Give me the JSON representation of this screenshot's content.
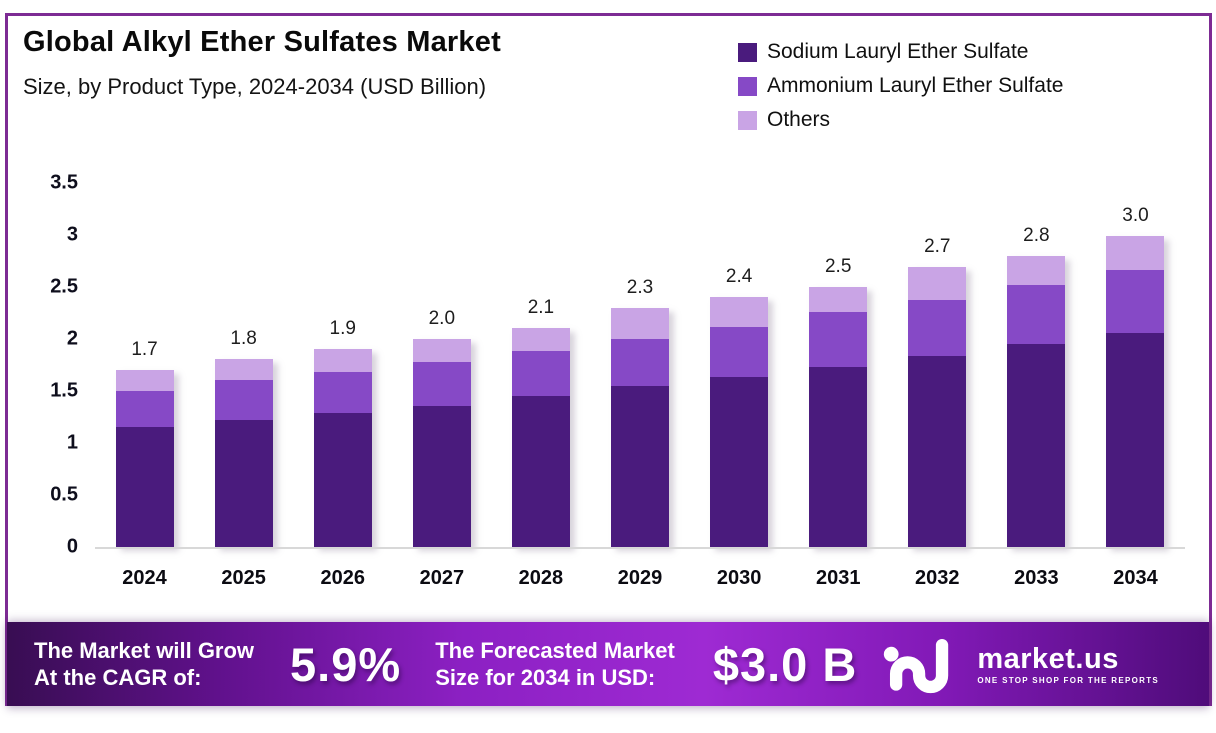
{
  "header": {
    "title": "Global Alkyl Ether Sulfates Market",
    "subtitle": "Size, by Product Type, 2024-2034 (USD Billion)"
  },
  "chart_data": {
    "type": "bar",
    "stacked": true,
    "title": "Global Alkyl Ether Sulfates Market",
    "subtitle": "Size, by Product Type, 2024-2034 (USD Billion)",
    "unit": "USD Billion",
    "categories": [
      "2024",
      "2025",
      "2026",
      "2027",
      "2028",
      "2029",
      "2030",
      "2031",
      "2032",
      "2033",
      "2034"
    ],
    "series": [
      {
        "name": "Sodium Lauryl Ether Sulfate",
        "color": "#4a1b7d",
        "values": [
          1.15,
          1.22,
          1.29,
          1.36,
          1.45,
          1.55,
          1.63,
          1.73,
          1.84,
          1.95,
          2.06
        ]
      },
      {
        "name": "Ammonium Lauryl Ether Sulfate",
        "color": "#8649c6",
        "values": [
          0.35,
          0.38,
          0.39,
          0.42,
          0.43,
          0.45,
          0.48,
          0.53,
          0.54,
          0.57,
          0.61
        ]
      },
      {
        "name": "Others",
        "color": "#c9a4e5",
        "values": [
          0.2,
          0.2,
          0.22,
          0.22,
          0.22,
          0.3,
          0.29,
          0.24,
          0.32,
          0.28,
          0.33
        ]
      }
    ],
    "totals": [
      1.7,
      1.8,
      1.9,
      2.0,
      2.1,
      2.3,
      2.4,
      2.5,
      2.7,
      2.8,
      3.0
    ],
    "y_ticks": [
      3.5,
      3,
      2.5,
      2,
      1.5,
      1,
      0.5,
      0
    ],
    "ylim": [
      0,
      3.5
    ],
    "grid": false,
    "legend_position": "top-right"
  },
  "banner": {
    "left_line1": "The Market will Grow",
    "left_line2": "At the CAGR of:",
    "cagr": "5.9%",
    "right_line1": "The Forecasted Market",
    "right_line2": "Size for 2034 in USD:",
    "forecast": "$3.0 B",
    "logo_text": "market.us",
    "logo_tagline": "ONE STOP SHOP FOR THE REPORTS"
  },
  "colors": {
    "frame": "#7d2b94",
    "banner_gradient_start": "#380d52",
    "banner_gradient_mid": "#9e2ad3",
    "banner_gradient_end": "#4f0c7a"
  }
}
